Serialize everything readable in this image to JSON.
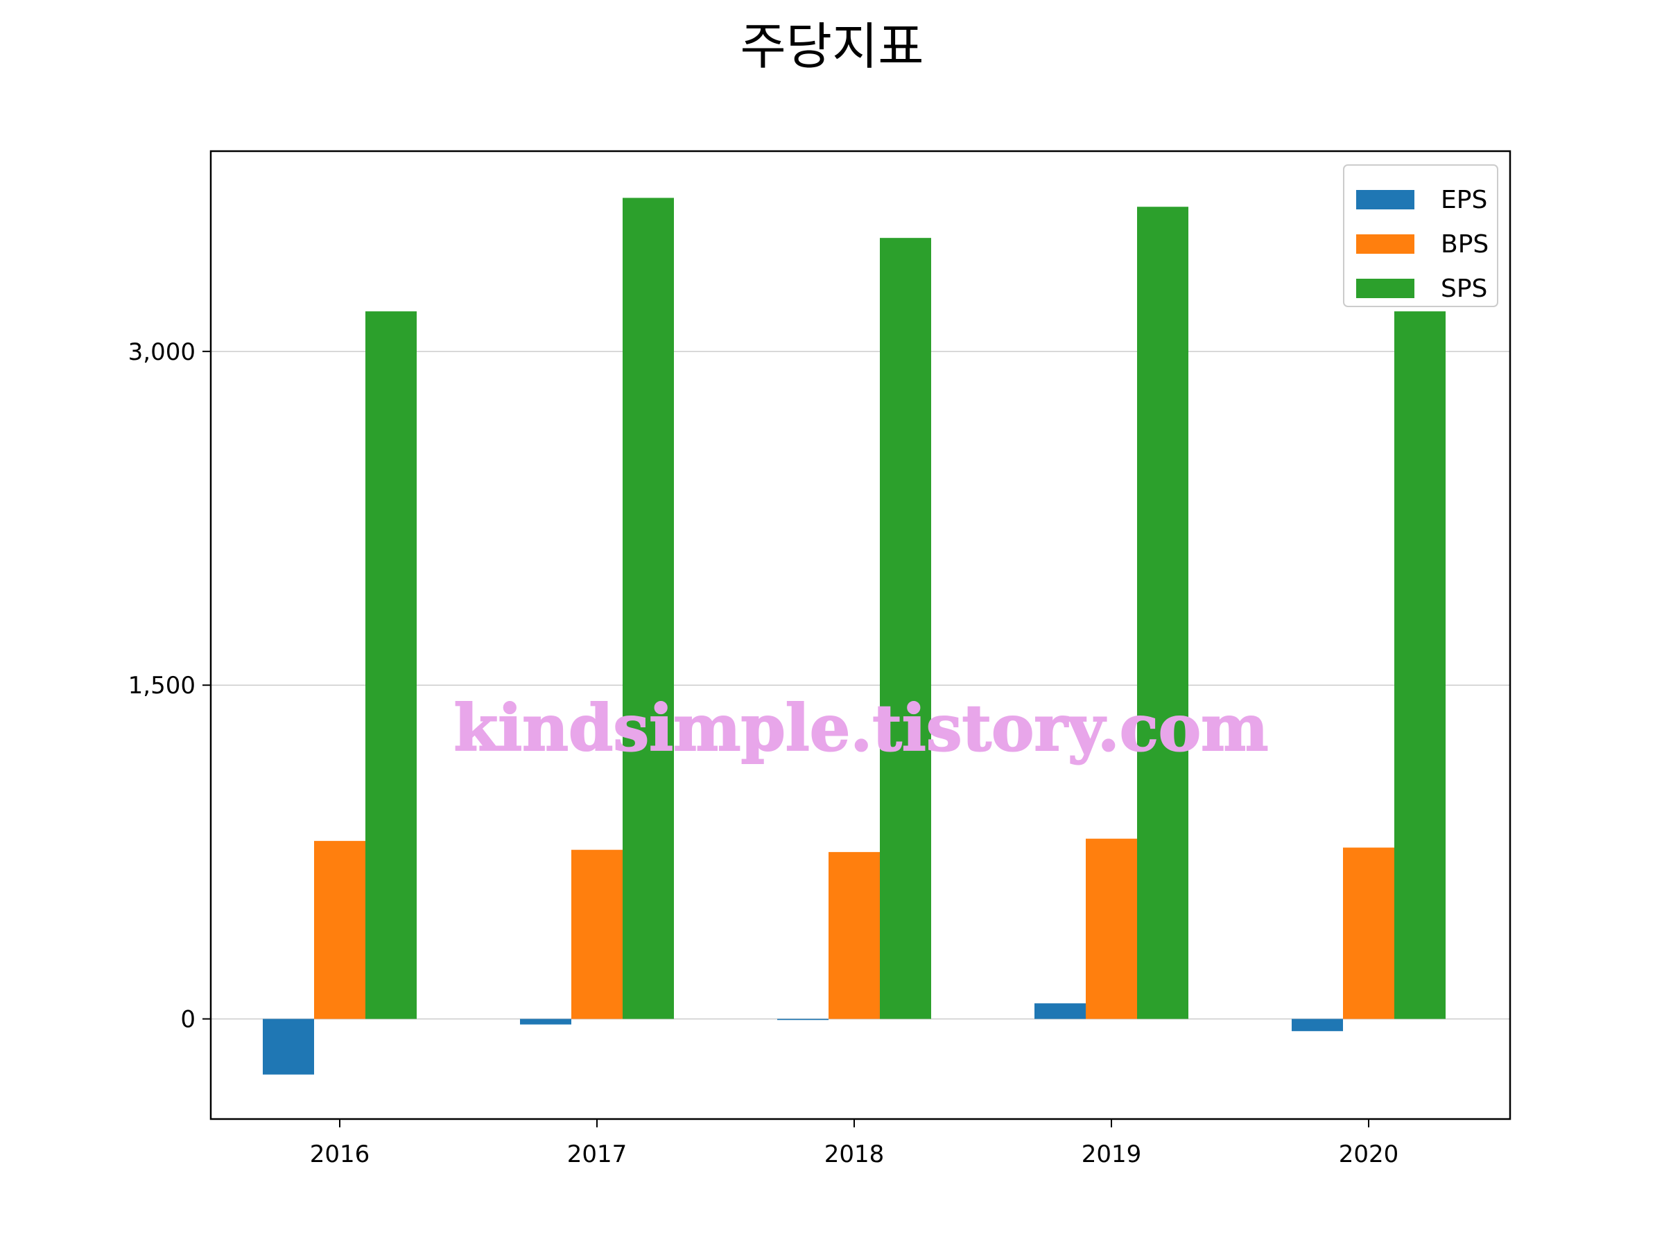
{
  "chart_data": {
    "type": "bar",
    "title": "주당지표",
    "xlabel": "",
    "ylabel": "",
    "categories": [
      "2016",
      "2017",
      "2018",
      "2019",
      "2020"
    ],
    "series": [
      {
        "name": "EPS",
        "color": "#1f77b4",
        "values": [
          -250,
          -25,
          -5,
          70,
          -55
        ]
      },
      {
        "name": "BPS",
        "color": "#ff7f0e",
        "values": [
          800,
          760,
          750,
          810,
          770
        ]
      },
      {
        "name": "SPS",
        "color": "#2ca02c",
        "values": [
          3180,
          3690,
          3510,
          3650,
          3180
        ]
      }
    ],
    "ylim": [
      -450,
      3900
    ],
    "yticks": [
      0,
      1500,
      3000
    ],
    "ytick_labels": [
      "0",
      "1,500",
      "3,000"
    ],
    "grid": "horizontal",
    "legend_position": "top-right"
  },
  "watermark": "kindsimple.tistory.com"
}
